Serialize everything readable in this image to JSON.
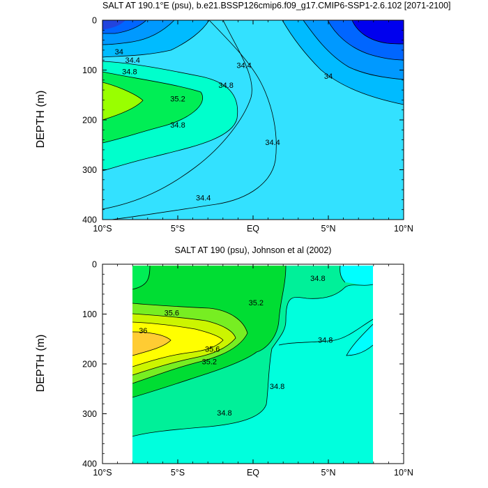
{
  "chart_data": [
    {
      "type": "contour",
      "title": "SALT AT 190.1°E (psu), b.e21.BSSP126cmip6.f09_g17.CMIP6-SSP1-2.6.102 [2071-2100]",
      "xlabel": "",
      "ylabel": "DEPTH (m)",
      "x_ticks": [
        "10°S",
        "5°S",
        "EQ",
        "5°N",
        "10°N"
      ],
      "x_tick_values": [
        -10,
        -5,
        0,
        5,
        10
      ],
      "xlim": [
        -10,
        10
      ],
      "y_ticks": [
        "0",
        "100",
        "200",
        "300",
        "400"
      ],
      "y_tick_values": [
        0,
        100,
        200,
        300,
        400
      ],
      "ylim": [
        400,
        0
      ],
      "contour_labels": [
        {
          "text": "34",
          "lat": -8.9,
          "depth": 63
        },
        {
          "text": "34.4",
          "lat": -8.0,
          "depth": 80
        },
        {
          "text": "34.8",
          "lat": -8.2,
          "depth": 103
        },
        {
          "text": "35.2",
          "lat": -5.0,
          "depth": 157
        },
        {
          "text": "34.8",
          "lat": -1.8,
          "depth": 130
        },
        {
          "text": "34.8",
          "lat": -5.0,
          "depth": 210
        },
        {
          "text": "34.4",
          "lat": -0.6,
          "depth": 90
        },
        {
          "text": "34.4",
          "lat": 1.3,
          "depth": 245
        },
        {
          "text": "34.4",
          "lat": -3.3,
          "depth": 356
        },
        {
          "text": "34",
          "lat": 5.0,
          "depth": 112
        }
      ],
      "legend": "none"
    },
    {
      "type": "contour",
      "title": "SALT AT 190 (psu), Johnson et al (2002)",
      "xlabel": "",
      "ylabel": "DEPTH (m)",
      "x_ticks": [
        "10°S",
        "5°S",
        "EQ",
        "5°N",
        "10°N"
      ],
      "x_tick_values": [
        -10,
        -5,
        0,
        5,
        10
      ],
      "xlim": [
        -10,
        10
      ],
      "y_ticks": [
        "0",
        "100",
        "200",
        "300",
        "400"
      ],
      "y_tick_values": [
        0,
        100,
        200,
        300,
        400
      ],
      "ylim": [
        400,
        0
      ],
      "data_extent_lat": [
        -8,
        8
      ],
      "contour_labels": [
        {
          "text": "36",
          "lat": -7.3,
          "depth": 133
        },
        {
          "text": "35.6",
          "lat": -5.4,
          "depth": 97
        },
        {
          "text": "35.6",
          "lat": -2.7,
          "depth": 170
        },
        {
          "text": "35.2",
          "lat": 0.2,
          "depth": 77
        },
        {
          "text": "35.2",
          "lat": -2.9,
          "depth": 195
        },
        {
          "text": "34.8",
          "lat": 4.3,
          "depth": 28
        },
        {
          "text": "34.8",
          "lat": 4.8,
          "depth": 152
        },
        {
          "text": "34.8",
          "lat": 1.6,
          "depth": 245
        },
        {
          "text": "34.8",
          "lat": -1.9,
          "depth": 298
        }
      ],
      "legend": "none"
    }
  ]
}
